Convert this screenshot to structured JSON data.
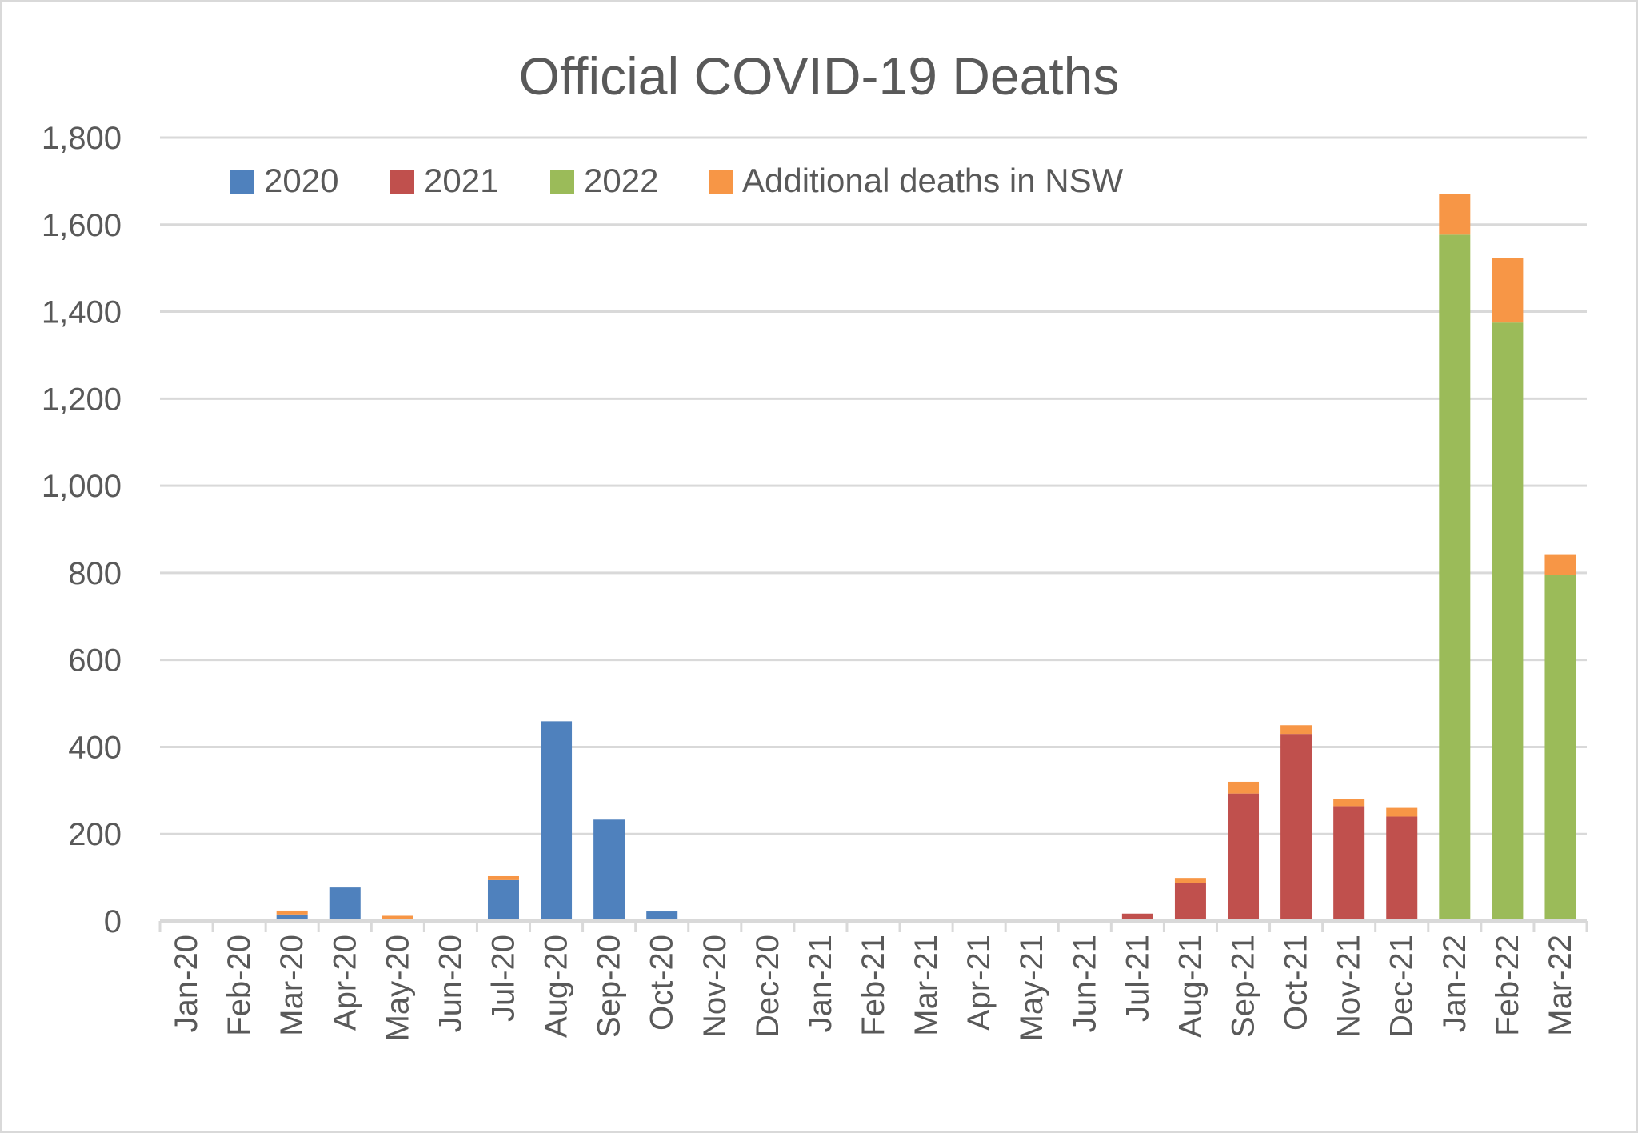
{
  "chart_data": {
    "type": "bar",
    "stacked": true,
    "title": "Official COVID-19 Deaths",
    "xlabel": "",
    "ylabel": "",
    "ylim": [
      0,
      1800
    ],
    "yticks": [
      "0",
      "200",
      "400",
      "600",
      "800",
      "1,000",
      "1,200",
      "1,400",
      "1,600",
      "1,800"
    ],
    "grid": true,
    "legend_position": "top-left",
    "categories": [
      "Jan-20",
      "Feb-20",
      "Mar-20",
      "Apr-20",
      "May-20",
      "Jun-20",
      "Jul-20",
      "Aug-20",
      "Sep-20",
      "Oct-20",
      "Nov-20",
      "Dec-20",
      "Jan-21",
      "Feb-21",
      "Mar-21",
      "Apr-21",
      "May-21",
      "Jun-21",
      "Jul-21",
      "Aug-21",
      "Sep-21",
      "Oct-21",
      "Nov-21",
      "Dec-21",
      "Jan-22",
      "Feb-22",
      "Mar-22"
    ],
    "series": [
      {
        "name": "2020",
        "color": "#4f81bd",
        "values": [
          0,
          2,
          15,
          77,
          2,
          2,
          94,
          459,
          233,
          22,
          3,
          2,
          0,
          0,
          0,
          0,
          0,
          0,
          0,
          0,
          0,
          0,
          0,
          0,
          0,
          0,
          0
        ]
      },
      {
        "name": "2021",
        "color": "#c0504d",
        "values": [
          0,
          0,
          0,
          0,
          0,
          0,
          0,
          0,
          0,
          0,
          0,
          0,
          1,
          1,
          0,
          2,
          0,
          0,
          17,
          87,
          293,
          430,
          264,
          240,
          0,
          0,
          0
        ]
      },
      {
        "name": "2022",
        "color": "#9bbb59",
        "values": [
          0,
          0,
          0,
          0,
          0,
          0,
          0,
          0,
          0,
          0,
          0,
          0,
          0,
          0,
          0,
          0,
          0,
          0,
          0,
          0,
          0,
          0,
          0,
          0,
          1577,
          1375,
          796
        ]
      },
      {
        "name": "Additional deaths in NSW",
        "color": "#f79646",
        "values": [
          0,
          0,
          9,
          0,
          10,
          0,
          9,
          0,
          0,
          0,
          0,
          0,
          0,
          1,
          0,
          0,
          0,
          0,
          0,
          12,
          27,
          20,
          17,
          20,
          94,
          149,
          45
        ]
      }
    ]
  }
}
